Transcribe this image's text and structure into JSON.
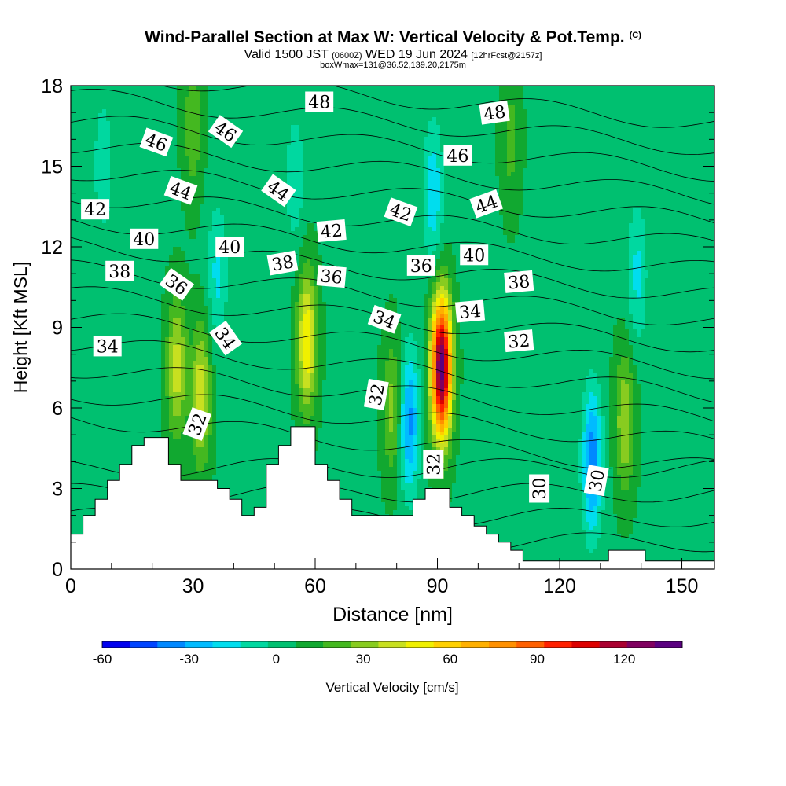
{
  "title": "Wind-Parallel Section at Max W: Vertical Velocity & Pot.Temp.",
  "title_mark": "(C)",
  "subtitle_pre": "Valid 1500 JST",
  "subtitle_utc": "(0600Z)",
  "subtitle_date": "WED 19 Jun 2024",
  "subtitle_fcst": "[12hrFcst@2157z]",
  "subtitle2": "boxWmax=131@36.52,139.20,2175m",
  "colorbar": {
    "label": "Vertical Velocity [cm/s]",
    "tick_labels": [
      "-60",
      "-30",
      "0",
      "30",
      "60",
      "90",
      "120"
    ],
    "tick_values": [
      -60,
      -30,
      0,
      30,
      60,
      90,
      120
    ],
    "range": [
      -60,
      140
    ],
    "colors": [
      "#0000ee",
      "#0044ff",
      "#0088ff",
      "#00bbff",
      "#00ddee",
      "#00d8a0",
      "#00c070",
      "#11a830",
      "#44b820",
      "#88cc20",
      "#c8e020",
      "#f0f000",
      "#ffd000",
      "#ffb000",
      "#ff9000",
      "#ff6000",
      "#ff2000",
      "#dd0000",
      "#aa0030",
      "#800060",
      "#5a0080"
    ]
  },
  "chart_data": {
    "type": "heatmap",
    "xlabel": "Distance [nm]",
    "ylabel": "Height [Kft MSL]",
    "xlim": [
      0,
      158
    ],
    "ylim": [
      0,
      18
    ],
    "x_ticks": [
      0,
      30,
      60,
      90,
      120,
      150
    ],
    "y_ticks": [
      0,
      3,
      6,
      9,
      12,
      15,
      18
    ],
    "x_tick_labels": [
      "0",
      "30",
      "60",
      "90",
      "120",
      "150"
    ],
    "y_tick_labels": [
      "0",
      "3",
      "6",
      "9",
      "12",
      "15",
      "18"
    ],
    "background_w": 5,
    "w_features": [
      {
        "x": 91,
        "z": 7.5,
        "w": 131
      },
      {
        "x": 58,
        "z": 8.5,
        "w": 50
      },
      {
        "x": 26,
        "z": 7.5,
        "w": 35
      },
      {
        "x": 32,
        "z": 6.5,
        "w": 38
      },
      {
        "x": 136,
        "z": 5.5,
        "w": 30
      },
      {
        "x": 79,
        "z": 6.0,
        "w": 25
      },
      {
        "x": 83,
        "z": 5.5,
        "w": -40
      },
      {
        "x": 128,
        "z": 4.0,
        "w": -45
      },
      {
        "x": 89,
        "z": 14.0,
        "w": -25
      },
      {
        "x": 36,
        "z": 11.0,
        "w": -20
      },
      {
        "x": 55,
        "z": 14.5,
        "w": -15
      },
      {
        "x": 139,
        "z": 11.0,
        "w": -20
      },
      {
        "x": 108,
        "z": 16.0,
        "w": 15
      },
      {
        "x": 30,
        "z": 16.5,
        "w": 20
      },
      {
        "x": 8,
        "z": 15.0,
        "w": -15
      }
    ],
    "terrain": {
      "x": [
        0,
        3,
        3,
        6,
        6,
        9,
        9,
        12,
        12,
        15,
        15,
        18,
        18,
        21,
        21,
        24,
        24,
        27,
        27,
        30,
        30,
        36,
        36,
        39,
        39,
        42,
        42,
        45,
        45,
        48,
        48,
        51,
        51,
        54,
        54,
        60,
        60,
        63,
        63,
        66,
        66,
        69,
        69,
        72,
        72,
        81,
        81,
        84,
        84,
        87,
        87,
        93,
        93,
        96,
        96,
        99,
        99,
        102,
        102,
        105,
        105,
        108,
        108,
        111,
        111,
        114,
        114,
        117,
        117,
        120,
        120,
        123,
        123,
        132,
        132,
        141,
        141,
        158
      ],
      "z": [
        1.3,
        1.3,
        2.0,
        2.0,
        2.6,
        2.6,
        3.3,
        3.3,
        3.9,
        3.9,
        4.6,
        4.6,
        4.9,
        4.9,
        4.9,
        4.9,
        3.9,
        3.9,
        3.3,
        3.3,
        3.3,
        3.3,
        3.0,
        3.0,
        2.6,
        2.6,
        2.0,
        2.0,
        2.3,
        2.3,
        3.9,
        3.9,
        4.6,
        4.6,
        5.3,
        5.3,
        3.9,
        3.9,
        3.3,
        3.3,
        2.6,
        2.6,
        2.0,
        2.0,
        2.0,
        2.0,
        2.0,
        2.0,
        2.6,
        2.6,
        3.0,
        3.0,
        2.3,
        2.3,
        2.0,
        2.0,
        1.6,
        1.6,
        1.3,
        1.3,
        1.0,
        1.0,
        0.7,
        0.7,
        0.3,
        0.3,
        0.3,
        0.3,
        0.3,
        0.3,
        0.3,
        0.3,
        0.3,
        0.3,
        0.7,
        0.7,
        0.3,
        0.3
      ]
    },
    "theta_levels": [
      30,
      31,
      32,
      33,
      34,
      35,
      36,
      37,
      38,
      39,
      40,
      41,
      42,
      43,
      44,
      45,
      46,
      47,
      48
    ],
    "contour_labels": [
      {
        "text": "48",
        "x": 61,
        "z": 17.4,
        "angle": 0
      },
      {
        "text": "48",
        "x": 104,
        "z": 17.0,
        "angle": -8
      },
      {
        "text": "46",
        "x": 21,
        "z": 15.9,
        "angle": 20
      },
      {
        "text": "46",
        "x": 38,
        "z": 16.3,
        "angle": 35
      },
      {
        "text": "46",
        "x": 95,
        "z": 15.4,
        "angle": 0
      },
      {
        "text": "44",
        "x": 27,
        "z": 14.1,
        "angle": 20
      },
      {
        "text": "44",
        "x": 51,
        "z": 14.1,
        "angle": 35
      },
      {
        "text": "44",
        "x": 102,
        "z": 13.6,
        "angle": -20
      },
      {
        "text": "42",
        "x": 6,
        "z": 13.4,
        "angle": 0
      },
      {
        "text": "42",
        "x": 64,
        "z": 12.6,
        "angle": -5
      },
      {
        "text": "42",
        "x": 81,
        "z": 13.3,
        "angle": 20
      },
      {
        "text": "40",
        "x": 18,
        "z": 12.3,
        "angle": 0
      },
      {
        "text": "40",
        "x": 39,
        "z": 12.0,
        "angle": 0
      },
      {
        "text": "40",
        "x": 99,
        "z": 11.7,
        "angle": 0
      },
      {
        "text": "38",
        "x": 12,
        "z": 11.1,
        "angle": 0
      },
      {
        "text": "38",
        "x": 52,
        "z": 11.4,
        "angle": -10
      },
      {
        "text": "38",
        "x": 110,
        "z": 10.7,
        "angle": -5
      },
      {
        "text": "36",
        "x": 26,
        "z": 10.6,
        "angle": 35
      },
      {
        "text": "36",
        "x": 64,
        "z": 10.9,
        "angle": 5
      },
      {
        "text": "36",
        "x": 86,
        "z": 11.3,
        "angle": 0
      },
      {
        "text": "34",
        "x": 9,
        "z": 8.3,
        "angle": 0
      },
      {
        "text": "34",
        "x": 38,
        "z": 8.6,
        "angle": 55
      },
      {
        "text": "34",
        "x": 77,
        "z": 9.3,
        "angle": 20
      },
      {
        "text": "34",
        "x": 98,
        "z": 9.6,
        "angle": -5
      },
      {
        "text": "32",
        "x": 31,
        "z": 5.4,
        "angle": -70
      },
      {
        "text": "32",
        "x": 75,
        "z": 6.5,
        "angle": -80
      },
      {
        "text": "32",
        "x": 89,
        "z": 3.9,
        "angle": -90
      },
      {
        "text": "32",
        "x": 110,
        "z": 8.5,
        "angle": -5
      },
      {
        "text": "30",
        "x": 115,
        "z": 3.0,
        "angle": -90
      },
      {
        "text": "30",
        "x": 129,
        "z": 3.3,
        "angle": -80
      }
    ]
  }
}
